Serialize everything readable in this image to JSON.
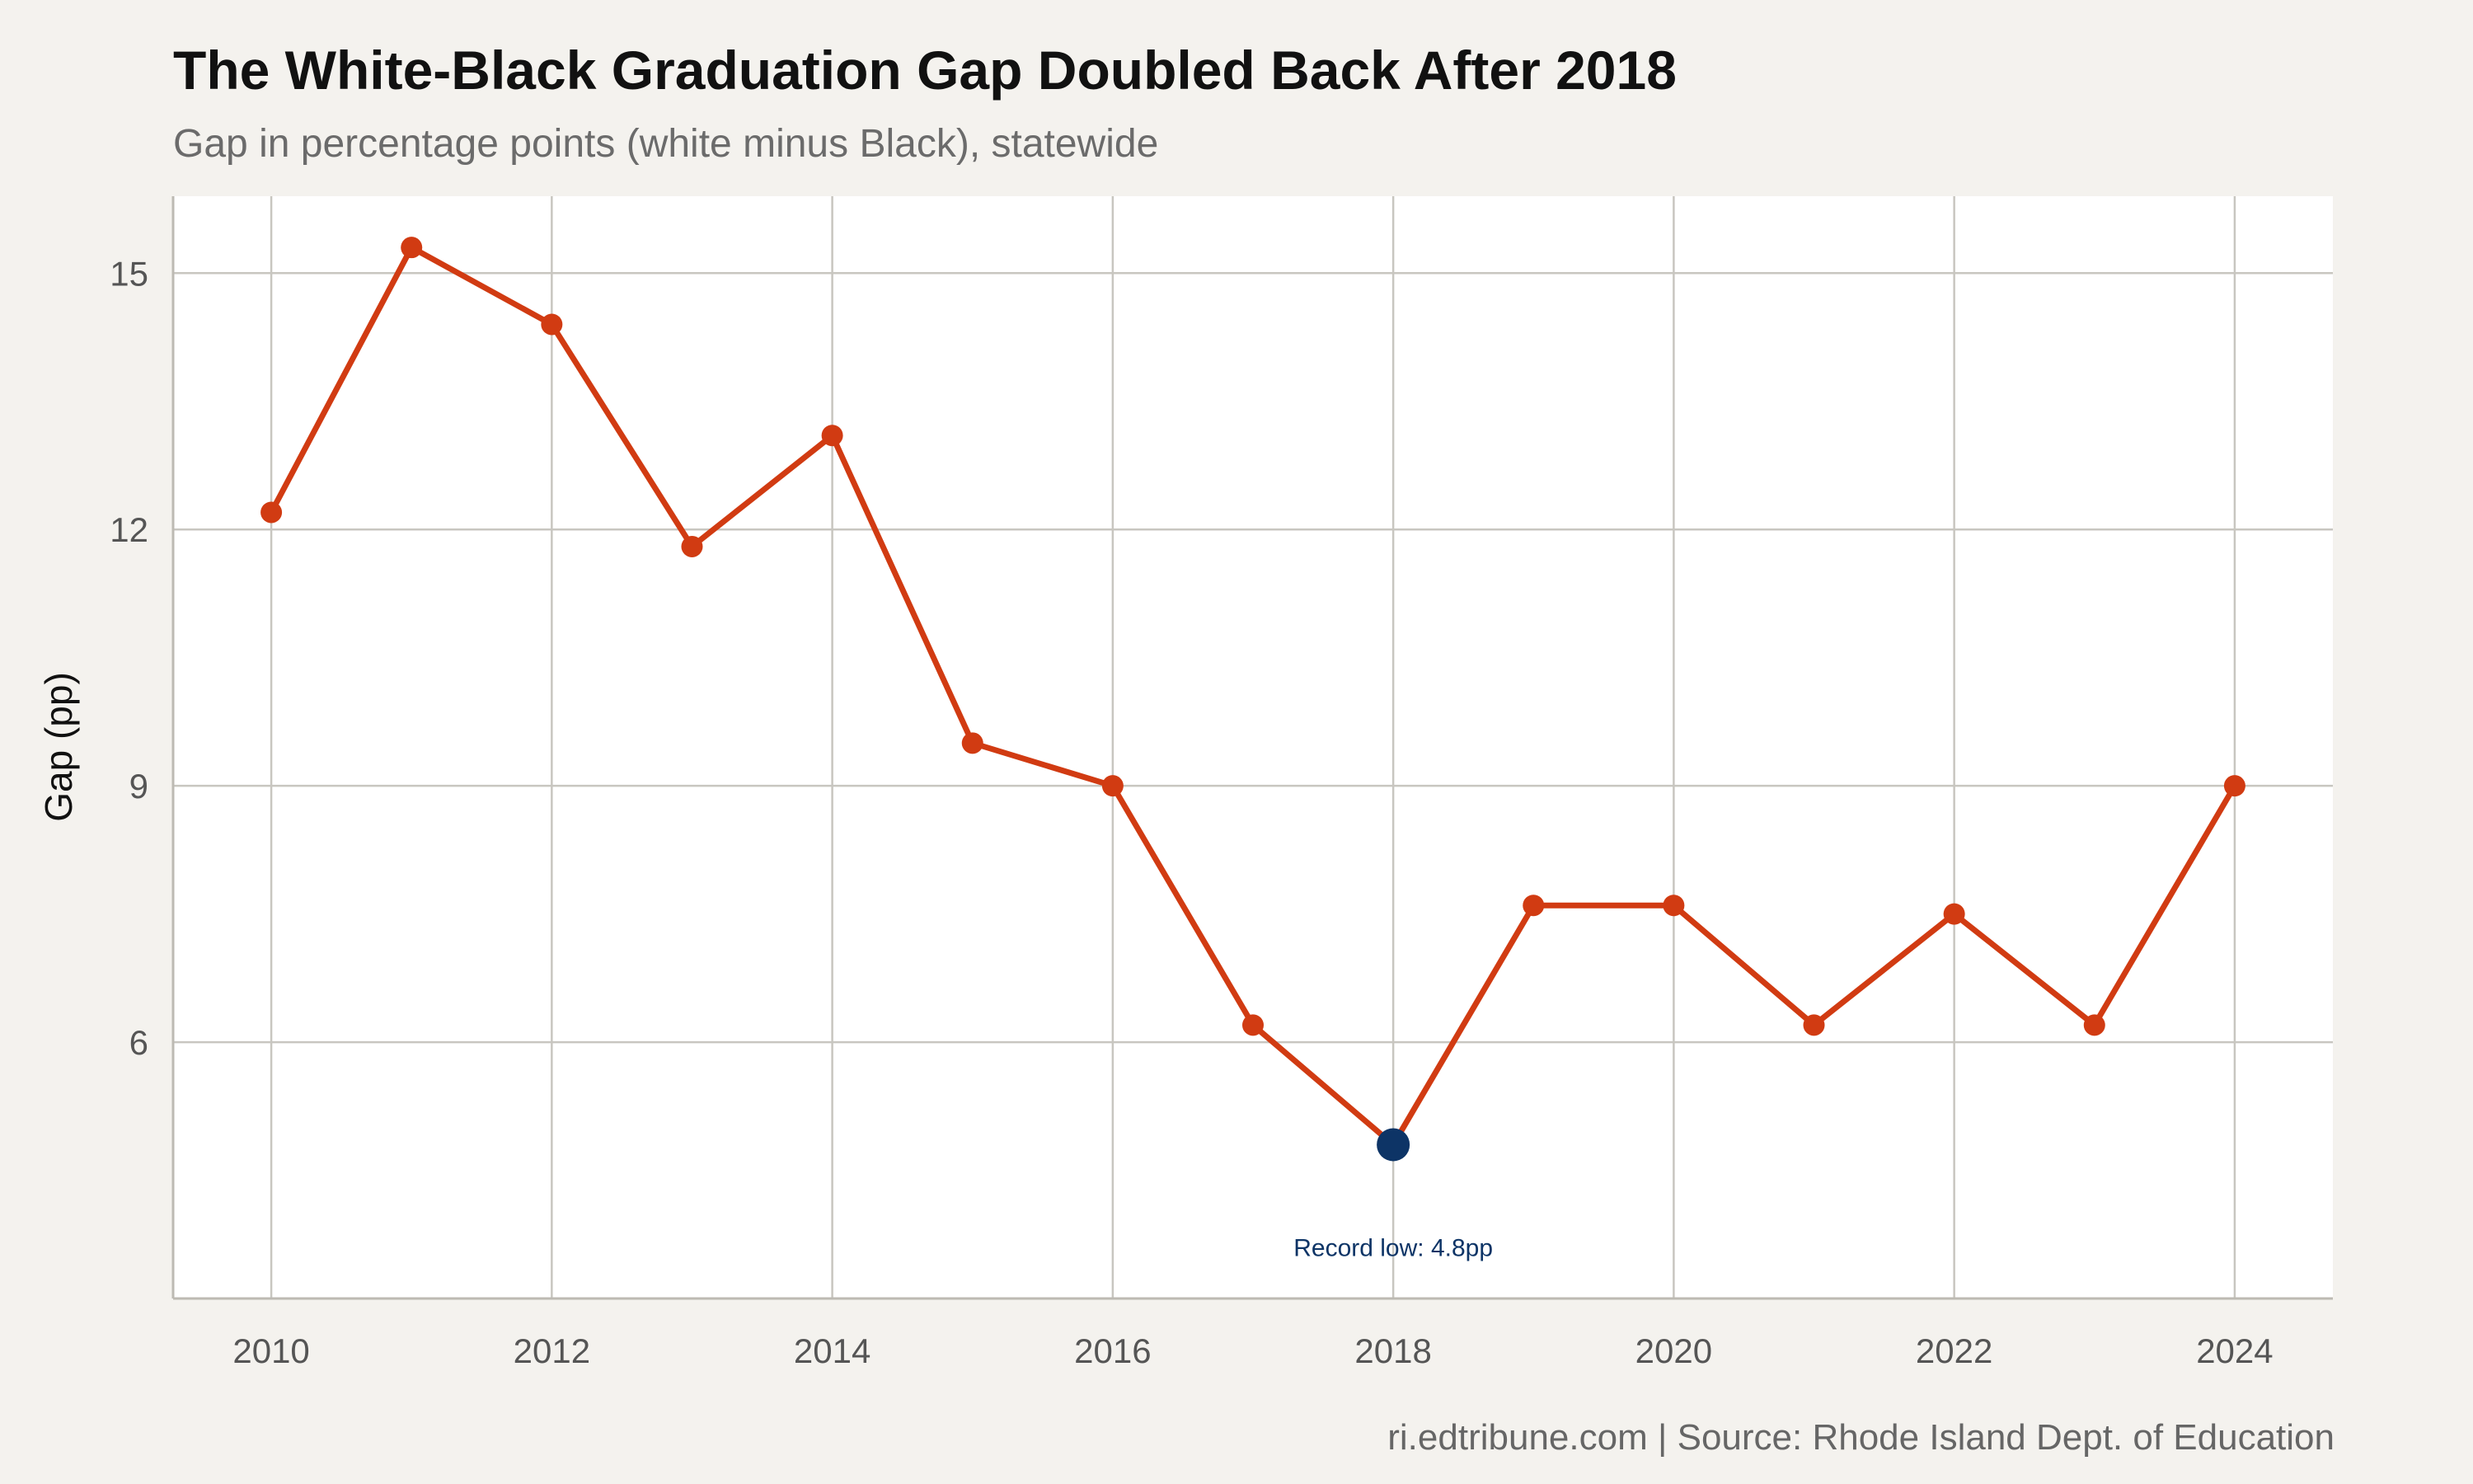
{
  "chart_data": {
    "type": "line",
    "title": "The White-Black Graduation Gap Doubled Back After 2018",
    "subtitle": "Gap in percentage points (white minus Black), statewide",
    "xlabel": "",
    "ylabel": "Gap (pp)",
    "caption": "ri.edtribune.com | Source: Rhode Island Dept. of Education",
    "x": [
      2010,
      2011,
      2012,
      2013,
      2014,
      2015,
      2016,
      2017,
      2018,
      2019,
      2020,
      2021,
      2022,
      2023,
      2024
    ],
    "series": [
      {
        "values": [
          12.2,
          15.3,
          14.4,
          11.8,
          13.1,
          9.5,
          9.0,
          6.2,
          4.8,
          7.6,
          7.6,
          6.2,
          7.5,
          6.2,
          9.0
        ],
        "color": "#d13b12"
      }
    ],
    "xlim": [
      2009.3,
      2024.7
    ],
    "ylim": [
      3.0,
      15.9
    ],
    "x_ticks": [
      2010,
      2012,
      2014,
      2016,
      2018,
      2020,
      2022,
      2024
    ],
    "y_ticks": [
      6,
      9,
      12,
      15
    ],
    "grid": true,
    "highlight": {
      "x": 2018,
      "y": 4.8,
      "color": "#0d3466",
      "label": "Record low: 4.8pp"
    }
  },
  "colors": {
    "background": "#f4f2ee",
    "panel": "#ffffff",
    "line": "#d13b12",
    "highlight": "#0d3466"
  }
}
